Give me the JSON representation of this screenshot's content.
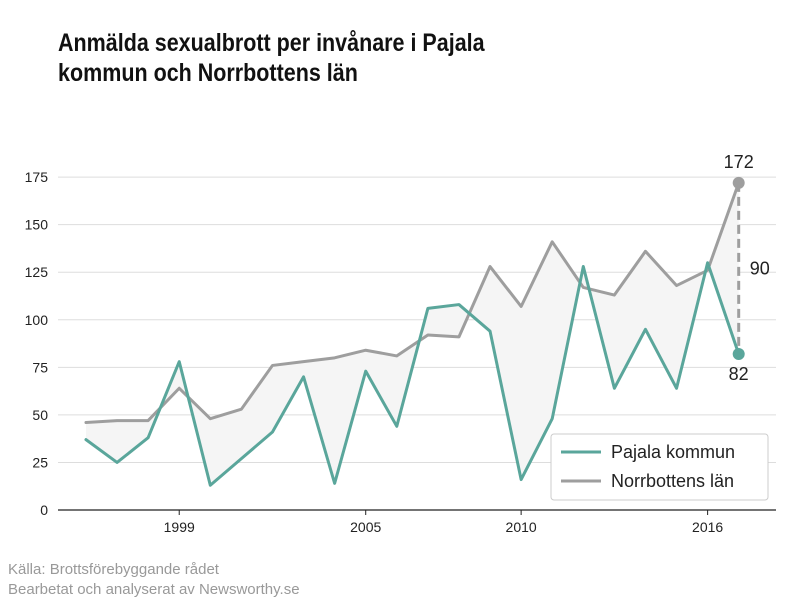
{
  "title": {
    "line1": "Anmälda sexualbrott per invånare i Pajala",
    "line2": "kommun och Norrbottens län"
  },
  "source": {
    "line1": "Källa: Brottsförebyggande rådet",
    "line2": "Bearbetat och analyserat av Newsworthy.se"
  },
  "chart_data": {
    "type": "line",
    "x": [
      1996,
      1997,
      1998,
      1999,
      2000,
      2001,
      2002,
      2003,
      2004,
      2005,
      2006,
      2007,
      2008,
      2009,
      2010,
      2011,
      2012,
      2013,
      2014,
      2015,
      2016,
      2017
    ],
    "series": [
      {
        "name": "Pajala kommun",
        "color": "#5aa69b",
        "values": [
          37,
          25,
          38,
          78,
          13,
          27,
          41,
          70,
          14,
          73,
          44,
          106,
          108,
          94,
          16,
          48,
          128,
          64,
          95,
          64,
          130,
          82
        ]
      },
      {
        "name": "Norrbottens län",
        "color": "#9e9e9e",
        "values": [
          46,
          47,
          47,
          64,
          48,
          53,
          76,
          78,
          80,
          84,
          81,
          92,
          91,
          128,
          107,
          141,
          117,
          113,
          136,
          118,
          126,
          172
        ]
      }
    ],
    "shade_between_series": true,
    "shade_color": "#f5f5f5",
    "xlim": [
      1995.1,
      2018.2
    ],
    "ylim": [
      0,
      184
    ],
    "yticks": [
      0,
      25,
      50,
      75,
      100,
      125,
      150,
      175
    ],
    "xticks": [
      1999,
      2005,
      2010,
      2016
    ],
    "ytick_labels": [
      "0",
      "25",
      "50",
      "75",
      "100",
      "125",
      "150",
      "175"
    ],
    "xtick_labels": [
      "1999",
      "2005",
      "2010",
      "2016"
    ],
    "grid": "horizontal",
    "legend": "bottom-right",
    "annotations": {
      "last_top": "172",
      "last_bottom": "82",
      "difference": "90"
    }
  }
}
